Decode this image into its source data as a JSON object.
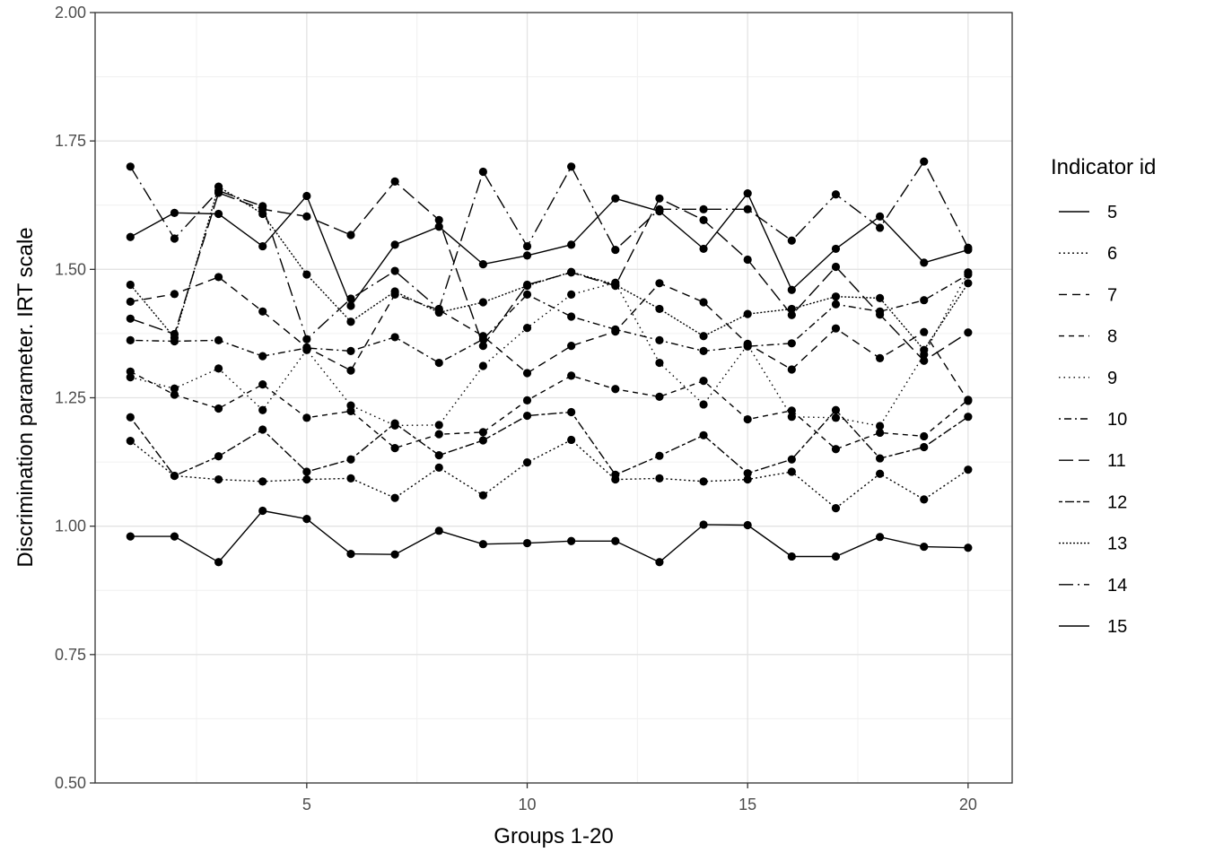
{
  "chart_data": {
    "type": "line",
    "title": "",
    "xlabel": "Groups 1-20",
    "ylabel": "Discrimination parameter. IRT scale",
    "xlim": [
      0.2,
      21.0
    ],
    "ylim": [
      0.5,
      2.0
    ],
    "x_ticks": [
      5,
      10,
      15,
      20
    ],
    "x_tick_labels": [
      "5",
      "10",
      "15",
      "20"
    ],
    "y_ticks": [
      0.5,
      0.75,
      1.0,
      1.25,
      1.5,
      1.75,
      2.0
    ],
    "y_tick_labels": [
      "0.50",
      "0.75",
      "1.00",
      "1.25",
      "1.50",
      "1.75",
      "2.00"
    ],
    "grid": true,
    "legend_title": "Indicator id",
    "legend_position": "right",
    "x": [
      1,
      2,
      3,
      4,
      5,
      6,
      7,
      8,
      9,
      10,
      11,
      12,
      13,
      14,
      15,
      16,
      17,
      18,
      19,
      20
    ],
    "series": [
      {
        "name": "5",
        "dash": "solid",
        "values": [
          1.563,
          1.61,
          1.608,
          1.545,
          1.643,
          1.429,
          1.548,
          1.583,
          1.51,
          1.527,
          1.548,
          1.638,
          1.613,
          1.54,
          1.648,
          1.46,
          1.54,
          1.603,
          1.513,
          1.538
        ]
      },
      {
        "name": "6",
        "dash": "dotted-fine",
        "values": [
          1.166,
          1.098,
          1.091,
          1.087,
          1.091,
          1.093,
          1.055,
          1.114,
          1.06,
          1.124,
          1.168,
          1.091,
          1.093,
          1.087,
          1.091,
          1.106,
          1.035,
          1.102,
          1.052,
          1.11
        ]
      },
      {
        "name": "7",
        "dash": "dashed",
        "values": [
          1.437,
          1.452,
          1.485,
          1.418,
          1.348,
          1.303,
          1.451,
          1.421,
          1.37,
          1.298,
          1.351,
          1.379,
          1.473,
          1.436,
          1.355,
          1.305,
          1.385,
          1.327,
          1.378,
          1.244
        ]
      },
      {
        "name": "8",
        "dash": "dashed-short",
        "values": [
          1.301,
          1.256,
          1.229,
          1.276,
          1.211,
          1.224,
          1.152,
          1.179,
          1.183,
          1.245,
          1.293,
          1.267,
          1.252,
          1.283,
          1.208,
          1.225,
          1.15,
          1.182,
          1.175,
          1.246
        ]
      },
      {
        "name": "9",
        "dash": "dotted",
        "values": [
          1.29,
          1.268,
          1.307,
          1.226,
          1.343,
          1.235,
          1.196,
          1.197,
          1.312,
          1.386,
          1.451,
          1.474,
          1.318,
          1.237,
          1.353,
          1.213,
          1.211,
          1.195,
          1.334,
          1.494
        ]
      },
      {
        "name": "10",
        "dash": "dotdash",
        "values": [
          1.362,
          1.36,
          1.362,
          1.331,
          1.347,
          1.341,
          1.368,
          1.318,
          1.364,
          1.451,
          1.408,
          1.383,
          1.362,
          1.341,
          1.35,
          1.356,
          1.432,
          1.418,
          1.44,
          1.49
        ]
      },
      {
        "name": "11",
        "dash": "longdash",
        "values": [
          1.404,
          1.374,
          1.649,
          1.617,
          1.603,
          1.567,
          1.671,
          1.596,
          1.351,
          1.47,
          1.494,
          1.468,
          1.638,
          1.596,
          1.519,
          1.411,
          1.505,
          1.412,
          1.322,
          1.377
        ]
      },
      {
        "name": "12",
        "dash": "twodash",
        "values": [
          1.212,
          1.098,
          1.136,
          1.188,
          1.106,
          1.13,
          1.2,
          1.138,
          1.167,
          1.215,
          1.222,
          1.1,
          1.137,
          1.177,
          1.103,
          1.13,
          1.226,
          1.132,
          1.154,
          1.213
        ]
      },
      {
        "name": "13",
        "dash": "dotted-dense",
        "values": [
          1.47,
          1.367,
          1.661,
          1.608,
          1.49,
          1.398,
          1.457,
          1.416,
          1.436,
          1.468,
          1.495,
          1.47,
          1.423,
          1.37,
          1.413,
          1.423,
          1.447,
          1.444,
          1.343,
          1.473
        ]
      },
      {
        "name": "14",
        "dash": "longdashdot",
        "values": [
          1.7,
          1.56,
          1.653,
          1.623,
          1.364,
          1.443,
          1.497,
          1.423,
          1.69,
          1.545,
          1.7,
          1.538,
          1.617,
          1.617,
          1.617,
          1.556,
          1.646,
          1.581,
          1.71,
          1.542
        ]
      },
      {
        "name": "15",
        "dash": "solid",
        "values": [
          0.98,
          0.98,
          0.93,
          1.03,
          1.014,
          0.946,
          0.945,
          0.991,
          0.965,
          0.967,
          0.971,
          0.971,
          0.93,
          1.003,
          1.002,
          0.941,
          0.941,
          0.979,
          0.96,
          0.958
        ]
      }
    ]
  }
}
